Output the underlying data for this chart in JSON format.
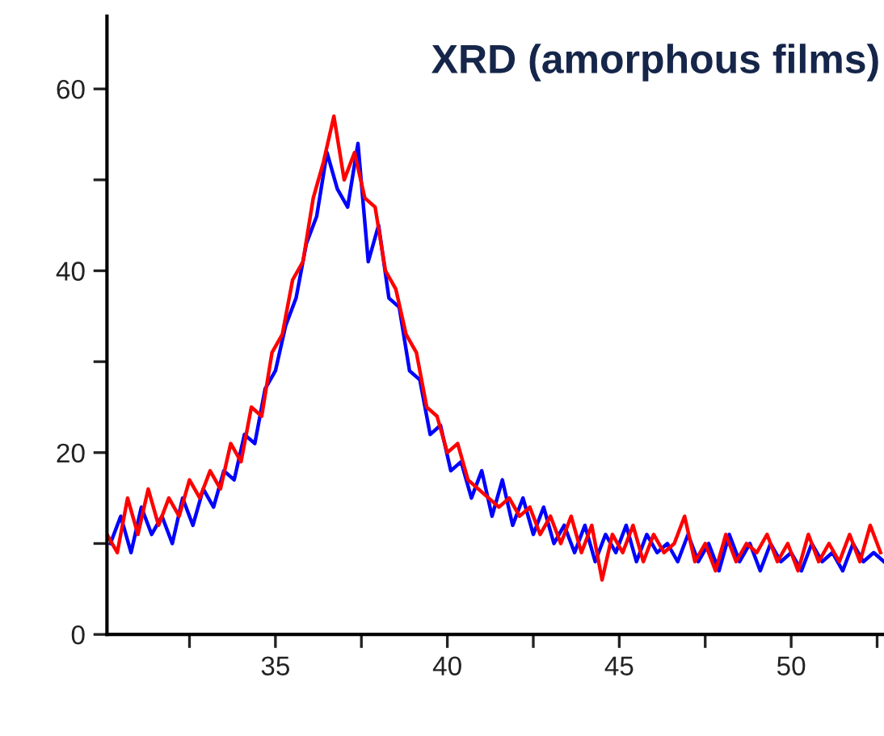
{
  "chart_data": {
    "type": "line",
    "title": "XRD (amorphous films)",
    "xlim": [
      30.1,
      52.7
    ],
    "ylim": [
      0,
      68
    ],
    "xticks": [
      {
        "value": 32.5,
        "label": null
      },
      35,
      {
        "value": 37.5,
        "label": null
      },
      40,
      {
        "value": 42.5,
        "label": null
      },
      45,
      {
        "value": 47.5,
        "label": null
      },
      50,
      {
        "value": 52.5,
        "label": null
      }
    ],
    "yticks": [
      0,
      {
        "value": 10,
        "label": null
      },
      20,
      {
        "value": 30,
        "label": null
      },
      40,
      {
        "value": 50,
        "label": null
      },
      60
    ],
    "grid": false,
    "legend": false,
    "marker": "none",
    "line_style": "solid",
    "series": [
      {
        "color": "#0000ff",
        "x": [
          30.2,
          30.5,
          30.8,
          31.1,
          31.4,
          31.7,
          32.0,
          32.3,
          32.6,
          32.9,
          33.2,
          33.5,
          33.8,
          34.1,
          34.4,
          34.7,
          35.0,
          35.3,
          35.6,
          35.9,
          36.2,
          36.5,
          36.8,
          37.1,
          37.4,
          37.7,
          38.0,
          38.3,
          38.6,
          38.9,
          39.2,
          39.5,
          39.8,
          40.1,
          40.4,
          40.7,
          41.0,
          41.3,
          41.6,
          41.9,
          42.2,
          42.5,
          42.8,
          43.1,
          43.4,
          43.7,
          44.0,
          44.3,
          44.6,
          44.9,
          45.2,
          45.5,
          45.8,
          46.1,
          46.4,
          46.7,
          47.0,
          47.3,
          47.6,
          47.9,
          48.2,
          48.5,
          48.8,
          49.1,
          49.4,
          49.7,
          50.0,
          50.3,
          50.6,
          50.9,
          51.2,
          51.5,
          51.8,
          52.1,
          52.4,
          52.7
        ],
        "values": [
          10,
          13,
          9,
          14,
          11,
          13,
          10,
          15,
          12,
          16,
          14,
          18,
          17,
          22,
          21,
          27,
          29,
          34,
          37,
          43,
          46,
          53,
          49,
          47,
          54,
          41,
          45,
          37,
          36,
          29,
          28,
          22,
          23,
          18,
          19,
          15,
          18,
          13,
          17,
          12,
          15,
          11,
          14,
          10,
          12,
          9,
          12,
          8,
          11,
          9,
          12,
          8,
          11,
          9,
          10,
          8,
          11,
          8,
          10,
          7,
          11,
          8,
          10,
          7,
          10,
          8,
          9,
          7,
          10,
          8,
          9,
          7,
          10,
          8,
          9,
          8
        ]
      },
      {
        "color": "#ff0000",
        "x": [
          30.1,
          30.4,
          30.7,
          31.0,
          31.3,
          31.6,
          31.9,
          32.2,
          32.5,
          32.8,
          33.1,
          33.4,
          33.7,
          34.0,
          34.3,
          34.6,
          34.9,
          35.2,
          35.5,
          35.8,
          36.1,
          36.4,
          36.7,
          37.0,
          37.3,
          37.6,
          37.9,
          38.2,
          38.5,
          38.8,
          39.1,
          39.4,
          39.7,
          40.0,
          40.3,
          40.6,
          40.9,
          41.2,
          41.5,
          41.8,
          42.1,
          42.4,
          42.7,
          43.0,
          43.3,
          43.6,
          43.9,
          44.2,
          44.5,
          44.8,
          45.1,
          45.4,
          45.7,
          46.0,
          46.3,
          46.6,
          46.9,
          47.2,
          47.5,
          47.8,
          48.1,
          48.4,
          48.7,
          49.0,
          49.3,
          49.6,
          49.9,
          50.2,
          50.5,
          50.8,
          51.1,
          51.4,
          51.7,
          52.0,
          52.3,
          52.6
        ],
        "values": [
          11,
          9,
          15,
          11,
          16,
          12,
          15,
          13,
          17,
          15,
          18,
          16,
          21,
          19,
          25,
          24,
          31,
          33,
          39,
          41,
          48,
          52,
          57,
          50,
          53,
          48,
          47,
          40,
          38,
          33,
          31,
          25,
          24,
          20,
          21,
          17,
          16,
          15,
          14,
          15,
          13,
          14,
          11,
          13,
          10,
          13,
          9,
          12,
          6,
          11,
          9,
          12,
          8,
          11,
          9,
          10,
          13,
          8,
          10,
          7,
          11,
          8,
          10,
          9,
          11,
          8,
          10,
          7,
          11,
          8,
          10,
          8,
          11,
          8,
          12,
          9
        ]
      }
    ]
  }
}
